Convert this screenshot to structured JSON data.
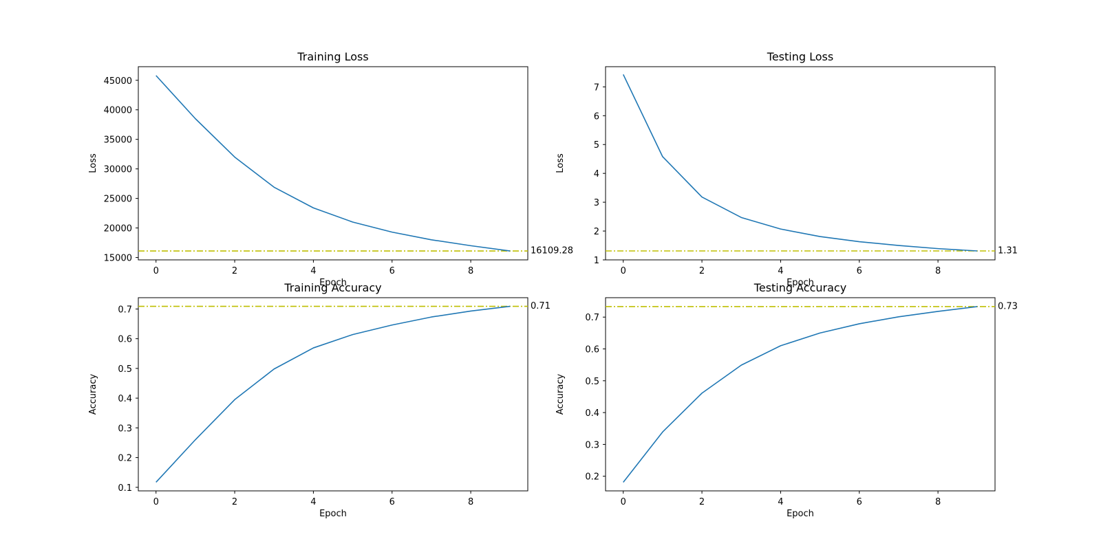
{
  "colors": {
    "series_line": "#1f77b4",
    "reference_line": "#bfbf00",
    "axes": "#000000",
    "background": "#ffffff"
  },
  "chart_data": [
    {
      "type": "line",
      "title": "Training Loss",
      "xlabel": "Epoch",
      "ylabel": "Loss",
      "x": [
        0,
        1,
        2,
        3,
        4,
        5,
        6,
        7,
        8,
        9
      ],
      "values": [
        45800,
        38500,
        32000,
        26900,
        23400,
        21000,
        19300,
        18000,
        17000,
        16109.28
      ],
      "xlim": [
        -0.45,
        9.45
      ],
      "ylim": [
        14600,
        47300
      ],
      "xticks": [
        0,
        2,
        4,
        6,
        8
      ],
      "yticks": [
        15000,
        20000,
        25000,
        30000,
        35000,
        40000,
        45000
      ],
      "reference_line": {
        "value": 16109.28,
        "label": "16109.28",
        "style": "dash-dot"
      },
      "grid": false
    },
    {
      "type": "line",
      "title": "Testing Loss",
      "xlabel": "Epoch",
      "ylabel": "Loss",
      "x": [
        0,
        1,
        2,
        3,
        4,
        5,
        6,
        7,
        8,
        9
      ],
      "values": [
        7.43,
        4.58,
        3.18,
        2.47,
        2.07,
        1.81,
        1.63,
        1.5,
        1.39,
        1.31
      ],
      "xlim": [
        -0.45,
        9.45
      ],
      "ylim": [
        1.0,
        7.7
      ],
      "xticks": [
        0,
        2,
        4,
        6,
        8
      ],
      "yticks": [
        1,
        2,
        3,
        4,
        5,
        6,
        7
      ],
      "reference_line": {
        "value": 1.31,
        "label": "1.31",
        "style": "dash-dot"
      },
      "grid": false
    },
    {
      "type": "line",
      "title": "Training Accuracy",
      "xlabel": "Epoch",
      "ylabel": "Accuracy",
      "x": [
        0,
        1,
        2,
        3,
        4,
        5,
        6,
        7,
        8,
        9
      ],
      "values": [
        0.117,
        0.26,
        0.395,
        0.498,
        0.569,
        0.614,
        0.646,
        0.673,
        0.693,
        0.709
      ],
      "xlim": [
        -0.45,
        9.45
      ],
      "ylim": [
        0.088,
        0.738
      ],
      "xticks": [
        0,
        2,
        4,
        6,
        8
      ],
      "yticks": [
        0.1,
        0.2,
        0.3,
        0.4,
        0.5,
        0.6,
        0.7
      ],
      "reference_line": {
        "value": 0.709,
        "label": "0.71",
        "style": "dash-dot"
      },
      "grid": false
    },
    {
      "type": "line",
      "title": "Testing Accuracy",
      "xlabel": "Epoch",
      "ylabel": "Accuracy",
      "x": [
        0,
        1,
        2,
        3,
        4,
        5,
        6,
        7,
        8,
        9
      ],
      "values": [
        0.181,
        0.339,
        0.461,
        0.549,
        0.61,
        0.65,
        0.679,
        0.701,
        0.718,
        0.733
      ],
      "xlim": [
        -0.45,
        9.45
      ],
      "ylim": [
        0.154,
        0.761
      ],
      "xticks": [
        0,
        2,
        4,
        6,
        8
      ],
      "yticks": [
        0.2,
        0.3,
        0.4,
        0.5,
        0.6,
        0.7
      ],
      "reference_line": {
        "value": 0.733,
        "label": "0.73",
        "style": "dash-dot"
      },
      "grid": false
    }
  ]
}
